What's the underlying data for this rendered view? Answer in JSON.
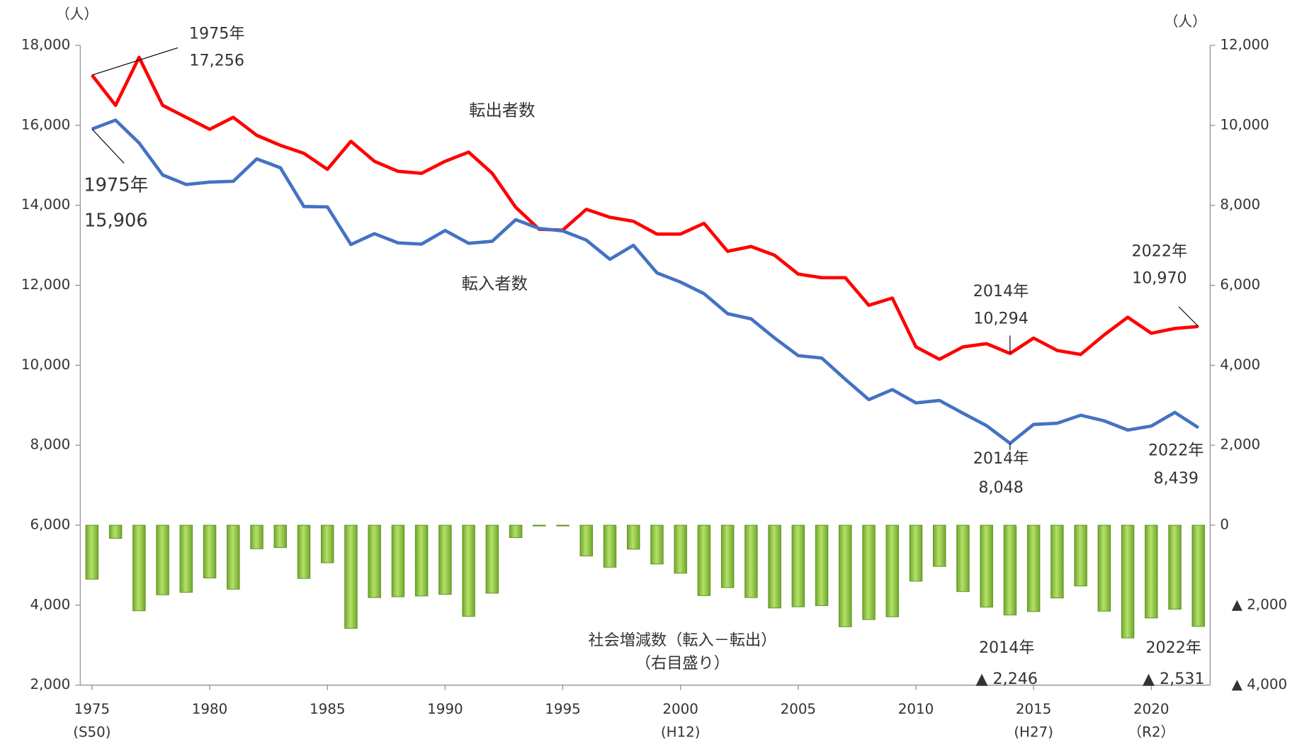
{
  "chart_data": {
    "type": "line",
    "unit_left": "（人）",
    "unit_right": "（人）",
    "note": "（右目盛り）",
    "x": [
      1975,
      1976,
      1977,
      1978,
      1979,
      1980,
      1981,
      1982,
      1983,
      1984,
      1985,
      1986,
      1987,
      1988,
      1989,
      1990,
      1991,
      1992,
      1993,
      1994,
      1995,
      1996,
      1997,
      1998,
      1999,
      2000,
      2001,
      2002,
      2003,
      2004,
      2005,
      2006,
      2007,
      2008,
      2009,
      2010,
      2011,
      2012,
      2013,
      2014,
      2015,
      2016,
      2017,
      2018,
      2019,
      2020,
      2021,
      2022
    ],
    "xlim": [
      1974.5,
      2022.5
    ],
    "xticks": [
      1975,
      1980,
      1985,
      1990,
      1995,
      2000,
      2005,
      2010,
      2015,
      2020
    ],
    "xtick_sublabels": [
      "(S50)",
      null,
      null,
      null,
      null,
      "(H12)",
      null,
      null,
      "(H27)",
      "（R2）"
    ],
    "ylim": [
      2000,
      18000
    ],
    "yticks": [
      {
        "value": 2000,
        "label": "2,000"
      },
      {
        "value": 4000,
        "label": "4,000"
      },
      {
        "value": 6000,
        "label": "6,000"
      },
      {
        "value": 8000,
        "label": "8,000"
      },
      {
        "value": 10000,
        "label": "10,000"
      },
      {
        "value": 12000,
        "label": "12,000"
      },
      {
        "value": 14000,
        "label": "14,000"
      },
      {
        "value": 16000,
        "label": "16,000"
      },
      {
        "value": 18000,
        "label": "18,000"
      }
    ],
    "y2lim": [
      -4000,
      12000
    ],
    "y2ticks": [
      {
        "value": -4000,
        "label": "▲ 4,000"
      },
      {
        "value": -2000,
        "label": "▲ 2,000"
      },
      0,
      {
        "value": 2000,
        "label": "2,000"
      },
      {
        "value": 4000,
        "label": "4,000"
      },
      {
        "value": 6000,
        "label": "6,000"
      },
      {
        "value": 8000,
        "label": "8,000"
      },
      {
        "value": 10000,
        "label": "10,000"
      },
      {
        "value": 12000,
        "label": "12,000"
      }
    ],
    "series": [
      {
        "name": "転出者数",
        "type": "line",
        "color": "#ff0000",
        "values": [
          17256,
          16500,
          17700,
          16500,
          16200,
          15900,
          16200,
          15750,
          15500,
          15300,
          14900,
          15600,
          15100,
          14850,
          14800,
          15100,
          15330,
          14800,
          13950,
          13400,
          13380,
          13900,
          13700,
          13600,
          13280,
          13280,
          13550,
          12850,
          12970,
          12750,
          12280,
          12190,
          12190,
          11500,
          11680,
          10460,
          10150,
          10460,
          10540,
          10294,
          10680,
          10370,
          10270,
          10760,
          11200,
          10800,
          10920,
          10970
        ],
        "callouts": [
          {
            "x": 1975,
            "label": "1975年",
            "value_label": "17,256"
          },
          {
            "x": 2014,
            "label": "2014年",
            "value_label": "10,294"
          },
          {
            "x": 2022,
            "label": "2022年",
            "value_label": "10,970"
          }
        ]
      },
      {
        "name": "転入者数",
        "type": "line",
        "color": "#4472c4",
        "values": [
          15906,
          16130,
          15560,
          14760,
          14520,
          14580,
          14600,
          15160,
          14940,
          13970,
          13960,
          13020,
          13290,
          13060,
          13030,
          13370,
          13050,
          13100,
          13640,
          13420,
          13360,
          13130,
          12650,
          13000,
          12310,
          12080,
          11790,
          11290,
          11160,
          10680,
          10240,
          10180,
          9650,
          9140,
          9390,
          9060,
          9120,
          8800,
          8490,
          8048,
          8520,
          8550,
          8750,
          8610,
          8380,
          8480,
          8820,
          8439
        ],
        "callouts": [
          {
            "x": 1975,
            "label": "1975年",
            "value_label": "15,906"
          },
          {
            "x": 2014,
            "label": "2014年",
            "value_label": "8,048"
          },
          {
            "x": 2022,
            "label": "2022年",
            "value_label": "8,439"
          }
        ]
      },
      {
        "name": "社会増減数（転入－転出）",
        "type": "bar",
        "axis": "y2",
        "color": "#92c83e",
        "values": [
          -1350,
          -330,
          -2140,
          -1740,
          -1680,
          -1320,
          -1600,
          -590,
          -560,
          -1330,
          -940,
          -2580,
          -1810,
          -1790,
          -1770,
          -1730,
          -2280,
          -1700,
          -310,
          -20,
          -20,
          -770,
          -1050,
          -600,
          -970,
          -1200,
          -1760,
          -1560,
          -1810,
          -2070,
          -2040,
          -2010,
          -2540,
          -2360,
          -2290,
          -1400,
          -1030,
          -1660,
          -2050,
          -2246,
          -2160,
          -1820,
          -1520,
          -2150,
          -2820,
          -2320,
          -2100,
          -2531
        ],
        "callouts": [
          {
            "x": 2014,
            "label": "2014年",
            "value_label": "▲ 2,246"
          },
          {
            "x": 2022,
            "label": "2022年",
            "value_label": "▲ 2,531"
          }
        ]
      }
    ]
  }
}
